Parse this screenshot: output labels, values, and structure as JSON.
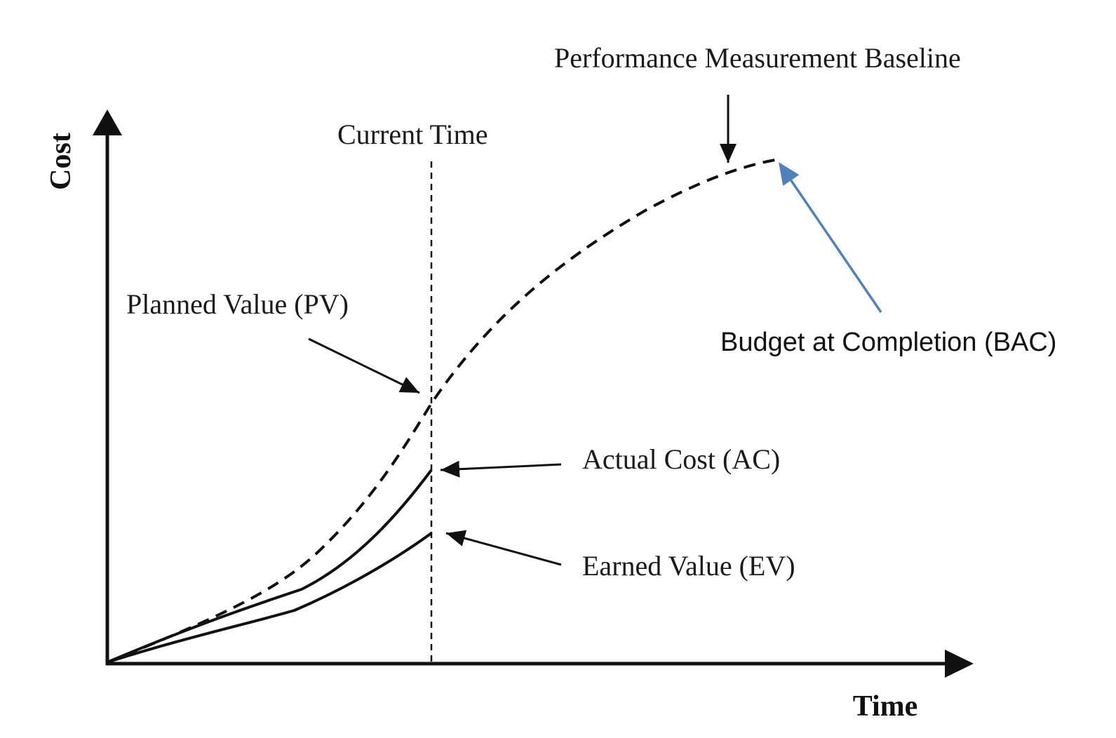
{
  "axes": {
    "y_label": "Cost",
    "x_label": "Time"
  },
  "labels": {
    "baseline": "Performance Measurement Baseline",
    "current_time": "Current Time",
    "planned_value": "Planned Value (PV)",
    "actual_cost": "Actual Cost (AC)",
    "earned_value": "Earned Value (EV)",
    "bac": "Budget at Completion (BAC)"
  },
  "colors": {
    "lines": "#111111",
    "bac_arrow": "#4f81bd"
  }
}
